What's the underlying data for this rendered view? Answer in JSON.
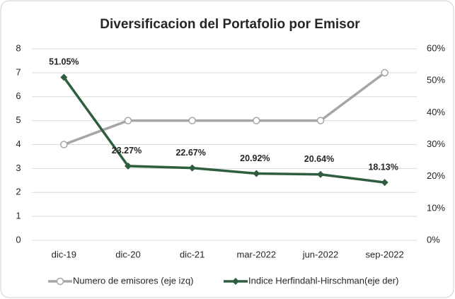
{
  "chart_data": {
    "type": "line",
    "title": "Diversificacion del Portafolio por Emisor",
    "categories": [
      "dic-19",
      "dic-20",
      "dic-21",
      "mar-2022",
      "jun-2022",
      "sep-2022"
    ],
    "series": [
      {
        "name": "Numero de emisores (eje izq)",
        "color": "#a6a6a6",
        "marker": "circle",
        "values": [
          4,
          5,
          5,
          5,
          5,
          7
        ]
      },
      {
        "name": "Indice Herfindahl-Hirschman(eje der)",
        "color": "#2e5e3e",
        "marker": "diamond",
        "axis": "y2",
        "values": [
          51.05,
          23.27,
          22.67,
          20.92,
          20.64,
          18.13
        ],
        "value_labels": [
          "51.05%",
          "23.27%",
          "22.67%",
          "20.92%",
          "20.64%",
          "18.13%"
        ]
      }
    ],
    "ylim": [
      0,
      8
    ],
    "yticks": [
      0,
      1,
      2,
      3,
      4,
      5,
      6,
      7,
      8
    ],
    "y2lim": [
      0,
      60
    ],
    "y2ticks": [
      {
        "value": 0,
        "label": "0%"
      },
      {
        "value": 10,
        "label": "10%"
      },
      {
        "value": 20,
        "label": "20%"
      },
      {
        "value": 30,
        "label": "30%"
      },
      {
        "value": 40,
        "label": "40%"
      },
      {
        "value": 50,
        "label": "50%"
      },
      {
        "value": 60,
        "label": "60%"
      }
    ],
    "grid": true,
    "legend": "bottom"
  }
}
